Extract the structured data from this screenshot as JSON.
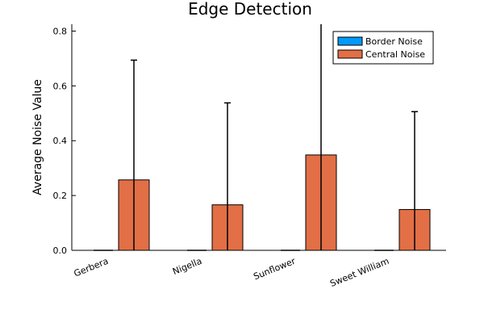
{
  "chart_data": {
    "type": "bar",
    "title": "Edge Detection",
    "xlabel": "",
    "ylabel": "Average Noise Value",
    "categories": [
      "Gerbera",
      "Nigella",
      "Sunflower",
      "Sweet William"
    ],
    "ylim": [
      0,
      0.825
    ],
    "yticks": [
      0.0,
      0.2,
      0.4,
      0.6,
      0.8
    ],
    "ytick_labels": [
      "0.0",
      "0.2",
      "0.4",
      "0.6",
      "0.8"
    ],
    "legend_position": "top-right",
    "grid": false,
    "series": [
      {
        "name": "Border Noise",
        "color": "#009AFA",
        "values": [
          0.0,
          0.0,
          0.0,
          0.0
        ],
        "error": [
          0.0,
          0.0,
          0.0,
          0.0
        ]
      },
      {
        "name": "Central Noise",
        "color": "#E26F46",
        "values": [
          0.257,
          0.166,
          0.348,
          0.149
        ],
        "error": [
          0.437,
          0.372,
          0.48,
          0.357
        ]
      }
    ]
  }
}
